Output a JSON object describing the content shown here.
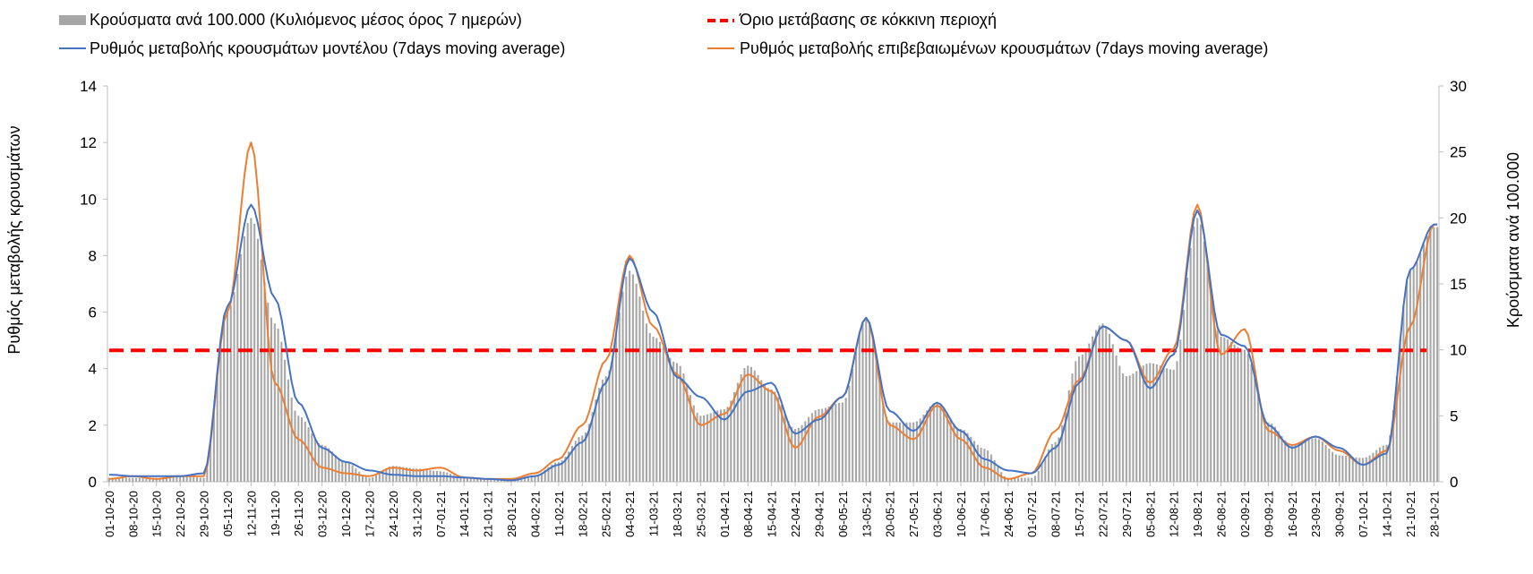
{
  "chart_data": {
    "type": "bar+line",
    "legend": [
      {
        "key": "bars",
        "label": "Κρούσματα ανά 100.000 (Κυλιόμενος μέσος όρος 7 ημερών)",
        "color": "#a6a6a6"
      },
      {
        "key": "threshold",
        "label": "Όριο μετάβασης σε κόκκινη περιοχή",
        "color": "#ff0000"
      },
      {
        "key": "model",
        "label": "Ρυθμός μεταβολής κρουσμάτων μοντέλου (7days moving average)",
        "color": "#4472c4"
      },
      {
        "key": "confirmed",
        "label": "Ρυθμός μεταβολής επιβεβαιωμένων κρουσμάτων (7days moving average)",
        "color": "#ed7d31"
      }
    ],
    "y_left": {
      "label": "Ρυθμός μεταβολής κρουσμάτων",
      "min": 0,
      "max": 14,
      "ticks": [
        "0",
        "2",
        "4",
        "6",
        "8",
        "10",
        "12",
        "14"
      ]
    },
    "y_right": {
      "label": "Κρούσματα ανά 100.000",
      "min": 0,
      "max": 30,
      "ticks": [
        "0",
        "5",
        "10",
        "15",
        "20",
        "25",
        "30"
      ]
    },
    "x_ticks": [
      "01-10-20",
      "08-10-20",
      "15-10-20",
      "22-10-20",
      "29-10-20",
      "05-11-20",
      "12-11-20",
      "19-11-20",
      "26-11-20",
      "03-12-20",
      "10-12-20",
      "17-12-20",
      "24-12-20",
      "31-12-20",
      "07-01-21",
      "14-01-21",
      "21-01-21",
      "28-01-21",
      "04-02-21",
      "11-02-21",
      "18-02-21",
      "25-02-21",
      "04-03-21",
      "11-03-21",
      "18-03-21",
      "25-03-21",
      "01-04-21",
      "08-04-21",
      "15-04-21",
      "22-04-21",
      "29-04-21",
      "06-05-21",
      "13-05-21",
      "20-05-21",
      "27-05-21",
      "03-06-21",
      "10-06-21",
      "17-06-21",
      "24-06-21",
      "01-07-21",
      "08-07-21",
      "15-07-21",
      "22-07-21",
      "29-07-21",
      "05-08-21",
      "12-08-21",
      "19-08-21",
      "26-08-21",
      "02-09-21",
      "09-09-21",
      "16-09-21",
      "23-09-21",
      "30-09-21",
      "07-10-21",
      "14-10-21",
      "21-10-21",
      "28-10-21"
    ],
    "threshold_value": 4.65,
    "bars_weekly": [
      0.3,
      0.3,
      0.3,
      0.5,
      0.3,
      13,
      20,
      12,
      5,
      2.8,
      1.5,
      0.3,
      1.2,
      1,
      0.8,
      0.3,
      0.2,
      0.2,
      0.5,
      1.5,
      3.5,
      8,
      16,
      11,
      9,
      5,
      5.5,
      8.8,
      7,
      4,
      5.5,
      6,
      12.5,
      4.5,
      4.5,
      6,
      4,
      2.5,
      0.3,
      0.3,
      3,
      9.5,
      12,
      8,
      9,
      8.5,
      20,
      11,
      10,
      4.5,
      2.8,
      3.3,
      2,
      1.8,
      2.8,
      16,
      19.3
    ],
    "model_weekly": [
      0.25,
      0.2,
      0.2,
      0.2,
      0.3,
      6.2,
      9.8,
      6.5,
      2.8,
      1.2,
      0.7,
      0.4,
      0.25,
      0.2,
      0.2,
      0.15,
      0.1,
      0.05,
      0.2,
      0.6,
      1.4,
      3.5,
      7.9,
      6,
      3.7,
      3,
      2.2,
      3.2,
      3.5,
      1.7,
      2.2,
      3,
      5.8,
      2.5,
      1.8,
      2.8,
      1.8,
      0.8,
      0.4,
      0.3,
      1.2,
      3.5,
      5.5,
      5,
      3.3,
      4.5,
      9.6,
      5.2,
      4.8,
      2,
      1.2,
      1.6,
      1.2,
      0.6,
      1,
      7.5,
      9.1
    ],
    "confirmed_weekly": [
      0.1,
      0.2,
      0.1,
      0.2,
      0.2,
      6,
      12,
      3.5,
      1.5,
      0.5,
      0.3,
      0.2,
      0.5,
      0.4,
      0.5,
      0.15,
      0.1,
      0.1,
      0.3,
      0.8,
      2,
      4.3,
      8,
      5.5,
      3.8,
      2,
      2.4,
      3.8,
      3.2,
      1.2,
      2.3,
      3,
      5.8,
      2,
      1.5,
      2.7,
      1.5,
      0.5,
      0.1,
      0.3,
      1.8,
      3.6,
      5.5,
      5,
      3.5,
      4.7,
      9.8,
      4.5,
      5.4,
      1.8,
      1.3,
      1.6,
      1.1,
      0.6,
      1.1,
      5.5,
      9.1
    ],
    "model_end": 9.25
  }
}
